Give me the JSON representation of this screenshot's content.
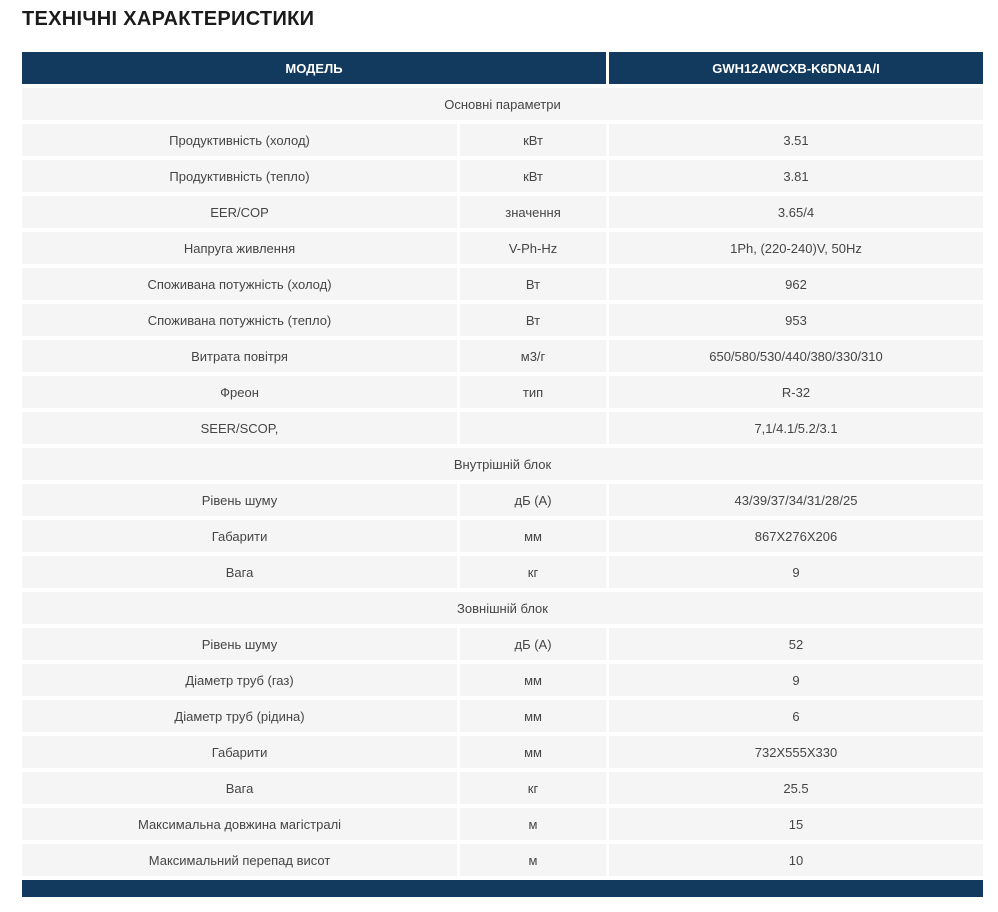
{
  "page_title": "ТЕХНІЧНІ ХАРАКТЕРИСТИКИ",
  "colors": {
    "header_bg": "#123A5F",
    "header_text": "#FFFFFF",
    "row_bg": "#F5F5F5",
    "row_text": "#454545",
    "title_text": "#1B1B1B",
    "page_bg": "#FFFFFF"
  },
  "table": {
    "header": {
      "model_label": "МОДЕЛЬ",
      "model_value": "GWH12AWCXB-K6DNA1A/I"
    },
    "sections": [
      {
        "title": "Основні параметри",
        "rows": [
          {
            "label": "Продуктивність (холод)",
            "unit": "кВт",
            "value": "3.51"
          },
          {
            "label": "Продуктивність (тепло)",
            "unit": "кВт",
            "value": "3.81"
          },
          {
            "label": "EER/COP",
            "unit": "значення",
            "value": "3.65/4"
          },
          {
            "label": "Напруга живлення",
            "unit": "V-Ph-Hz",
            "value": "1Ph, (220-240)V, 50Hz"
          },
          {
            "label": "Споживана потужність (холод)",
            "unit": "Вт",
            "value": "962"
          },
          {
            "label": "Споживана потужність (тепло)",
            "unit": "Вт",
            "value": "953"
          },
          {
            "label": "Витрата повітря",
            "unit": "м3/г",
            "value": "650/580/530/440/380/330/310"
          },
          {
            "label": "Фреон",
            "unit": "тип",
            "value": "R-32"
          },
          {
            "label": "SEER/SCOP,",
            "unit": "",
            "value": "7,1/4.1/5.2/3.1"
          }
        ]
      },
      {
        "title": "Внутрішній блок",
        "rows": [
          {
            "label": "Рівень шуму",
            "unit": "дБ (А)",
            "value": "43/39/37/34/31/28/25"
          },
          {
            "label": "Габарити",
            "unit": "мм",
            "value": "867X276X206"
          },
          {
            "label": "Вага",
            "unit": "кг",
            "value": "9"
          }
        ]
      },
      {
        "title": "Зовнішній блок",
        "rows": [
          {
            "label": "Рівень шуму",
            "unit": "дБ (А)",
            "value": "52"
          },
          {
            "label": "Діаметр труб (газ)",
            "unit": "мм",
            "value": "9"
          },
          {
            "label": "Діаметр труб (рідина)",
            "unit": "мм",
            "value": "6"
          },
          {
            "label": "Габарити",
            "unit": "мм",
            "value": "732X555X330"
          },
          {
            "label": "Вага",
            "unit": "кг",
            "value": "25.5"
          },
          {
            "label": "Максимальна довжина магістралі",
            "unit": "м",
            "value": "15"
          },
          {
            "label": "Максимальний перепад висот",
            "unit": "м",
            "value": "10"
          }
        ]
      }
    ]
  }
}
